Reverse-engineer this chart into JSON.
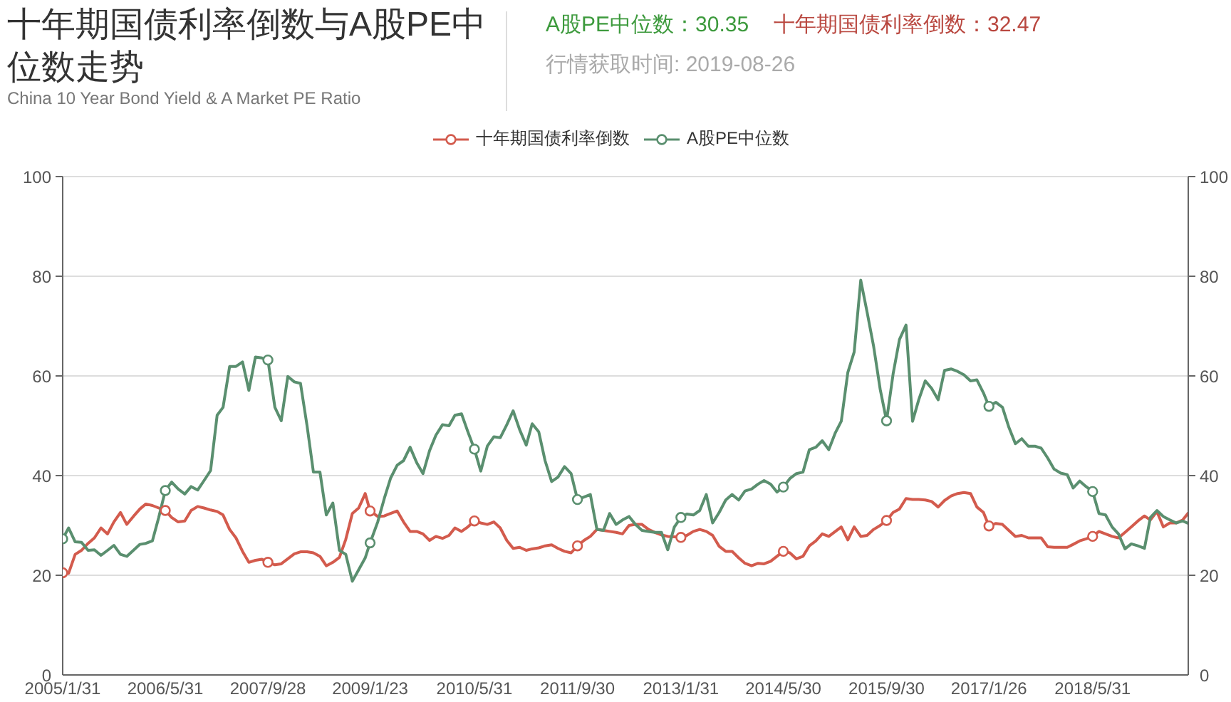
{
  "chart_data": {
    "type": "line",
    "title": "十年期国债利率倒数与A股PE中位数走势",
    "subtitle": "China 10 Year Bond Yield & A Market PE Ratio",
    "annotations": [
      "A股PE中位数：30.35",
      "十年期国债利率倒数：32.47",
      "行情获取时间: 2019-08-26"
    ],
    "x": [
      "2005-01-31",
      "2005-02-28",
      "2005-03-31",
      "2005-04-30",
      "2005-05-31",
      "2005-06-30",
      "2005-07-31",
      "2005-08-31",
      "2005-09-30",
      "2005-10-31",
      "2005-11-30",
      "2005-12-31",
      "2006-01-31",
      "2006-02-28",
      "2006-03-31",
      "2006-04-30",
      "2006-05-31",
      "2006-06-30",
      "2006-07-31",
      "2006-08-31",
      "2006-09-30",
      "2006-10-31",
      "2006-11-30",
      "2006-12-31",
      "2007-01-31",
      "2007-02-28",
      "2007-03-31",
      "2007-04-30",
      "2007-05-31",
      "2007-06-30",
      "2007-07-31",
      "2007-08-31",
      "2007-09-28",
      "2007-10-31",
      "2007-11-30",
      "2007-12-31",
      "2008-01-31",
      "2008-02-29",
      "2008-03-31",
      "2008-04-30",
      "2008-05-31",
      "2008-06-30",
      "2008-07-31",
      "2008-08-31",
      "2008-09-30",
      "2008-10-31",
      "2008-11-30",
      "2008-12-31",
      "2009-01-23",
      "2009-02-28",
      "2009-03-31",
      "2009-04-30",
      "2009-05-31",
      "2009-06-30",
      "2009-07-31",
      "2009-08-31",
      "2009-09-30",
      "2009-10-31",
      "2009-11-30",
      "2009-12-31",
      "2010-01-31",
      "2010-02-28",
      "2010-03-31",
      "2010-04-30",
      "2010-05-31",
      "2010-06-30",
      "2010-07-31",
      "2010-08-31",
      "2010-09-30",
      "2010-10-31",
      "2010-11-30",
      "2010-12-31",
      "2011-01-31",
      "2011-02-28",
      "2011-03-31",
      "2011-04-30",
      "2011-05-31",
      "2011-06-30",
      "2011-07-31",
      "2011-08-31",
      "2011-09-30",
      "2011-10-31",
      "2011-11-30",
      "2011-12-31",
      "2012-01-31",
      "2012-02-29",
      "2012-03-31",
      "2012-04-30",
      "2012-05-31",
      "2012-06-30",
      "2012-07-31",
      "2012-08-31",
      "2012-09-30",
      "2012-10-31",
      "2012-11-30",
      "2012-12-31",
      "2013-01-31",
      "2013-02-28",
      "2013-03-31",
      "2013-04-30",
      "2013-05-31",
      "2013-06-30",
      "2013-07-31",
      "2013-08-31",
      "2013-09-30",
      "2013-10-31",
      "2013-11-30",
      "2013-12-31",
      "2014-01-31",
      "2014-02-28",
      "2014-03-31",
      "2014-04-30",
      "2014-05-30",
      "2014-06-30",
      "2014-07-31",
      "2014-08-31",
      "2014-09-30",
      "2014-10-31",
      "2014-11-30",
      "2014-12-31",
      "2015-01-31",
      "2015-02-28",
      "2015-03-31",
      "2015-04-30",
      "2015-05-31",
      "2015-06-30",
      "2015-07-31",
      "2015-08-31",
      "2015-09-30",
      "2015-10-31",
      "2015-11-30",
      "2015-12-31",
      "2016-01-31",
      "2016-02-29",
      "2016-03-31",
      "2016-04-30",
      "2016-05-31",
      "2016-06-30",
      "2016-07-31",
      "2016-08-31",
      "2016-09-30",
      "2016-10-31",
      "2016-11-30",
      "2016-12-31",
      "2017-01-26",
      "2017-02-28",
      "2017-03-31",
      "2017-04-30",
      "2017-05-31",
      "2017-06-30",
      "2017-07-31",
      "2017-08-31",
      "2017-09-30",
      "2017-10-31",
      "2017-11-30",
      "2017-12-31",
      "2018-01-31",
      "2018-02-28",
      "2018-03-31",
      "2018-04-30",
      "2018-05-31",
      "2018-06-30",
      "2018-07-31",
      "2018-08-31",
      "2018-09-30",
      "2018-10-31",
      "2018-11-30",
      "2018-12-31",
      "2019-01-31",
      "2019-02-28",
      "2019-03-31",
      "2019-04-30",
      "2019-05-31",
      "2019-06-30",
      "2019-07-31",
      "2019-08-26"
    ],
    "series": [
      {
        "name": "十年期国债利率倒数",
        "color": "#d35b4d",
        "values": [
          20.5,
          20.4,
          24.2,
          25,
          26.4,
          27.5,
          29.5,
          28.3,
          30.7,
          32.6,
          30.2,
          31.8,
          33.3,
          34.3,
          34,
          33.5,
          33,
          31.6,
          30.7,
          30.9,
          33,
          33.8,
          33.5,
          33.1,
          32.8,
          32.1,
          29.2,
          27.5,
          24.8,
          22.6,
          23,
          23.2,
          22.6,
          22.1,
          22.3,
          23.3,
          24.3,
          24.7,
          24.7,
          24.5,
          23.8,
          21.9,
          22.6,
          23.6,
          27.2,
          32.4,
          33.5,
          36.4,
          32.9,
          31.8,
          31.9,
          32.4,
          32.9,
          30.7,
          28.8,
          28.8,
          28.3,
          27,
          27.8,
          27.4,
          28,
          29.5,
          28.8,
          29.7,
          30.9,
          30.5,
          30.2,
          30.7,
          29.5,
          27,
          25.4,
          25.6,
          25,
          25.3,
          25.5,
          25.9,
          26.1,
          25.4,
          24.8,
          24.5,
          25.9,
          27,
          27.8,
          29.2,
          29,
          28.8,
          28.6,
          28.3,
          30,
          30.2,
          30.2,
          29.2,
          28.6,
          28.1,
          27.8,
          27.7,
          27.6,
          28,
          28.8,
          29.2,
          28.8,
          28,
          25.8,
          24.8,
          24.8,
          23.5,
          22.4,
          21.9,
          22.4,
          22.3,
          22.8,
          23.8,
          24.8,
          24.5,
          23.3,
          23.8,
          25.9,
          26.9,
          28.3,
          27.8,
          28.8,
          29.7,
          27.1,
          29.7,
          27.8,
          28,
          29.2,
          30,
          31,
          32.6,
          33.3,
          35.4,
          35.2,
          35.2,
          35.1,
          34.8,
          33.7,
          35,
          35.9,
          36.4,
          36.6,
          36.4,
          33.7,
          32.6,
          29.9,
          30.4,
          30.2,
          29,
          27.8,
          28,
          27.5,
          27.5,
          27.5,
          25.7,
          25.6,
          25.6,
          25.6,
          26.2,
          26.9,
          27.3,
          27.8,
          28.8,
          28.3,
          27.8,
          27.5,
          28.6,
          29.7,
          30.9,
          31.9,
          31.1,
          32.8,
          29.7,
          30.5,
          30.5,
          31.1,
          32.5
        ]
      },
      {
        "name": "A股PE中位数",
        "color": "#5a8f6f",
        "axis": "y2",
        "values": [
          27.3,
          29.5,
          26.7,
          26.6,
          25,
          25.1,
          24,
          25,
          26,
          24.2,
          23.8,
          25,
          26.2,
          26.4,
          26.9,
          31.6,
          37,
          38.7,
          37.3,
          36.3,
          37.8,
          37.1,
          39,
          41,
          52.1,
          53.7,
          61.9,
          61.9,
          62.8,
          57.1,
          63.8,
          63.6,
          63.2,
          53.7,
          51,
          59.9,
          58.8,
          58.5,
          50,
          40.7,
          40.7,
          32.1,
          34.5,
          25,
          24.2,
          18.8,
          21.1,
          23.5,
          26.5,
          30.7,
          35.4,
          39.5,
          42.1,
          43,
          45.7,
          42.6,
          40.4,
          45,
          48.1,
          50.2,
          50,
          52.1,
          52.4,
          48.8,
          45.3,
          40.9,
          45.9,
          47.8,
          47.6,
          50.2,
          53,
          49.2,
          46.1,
          50.4,
          48.8,
          43,
          38.8,
          39.7,
          41.8,
          40.4,
          35.2,
          35.7,
          36.2,
          29.2,
          29,
          32.4,
          30.2,
          31.1,
          31.8,
          30.2,
          29,
          28.8,
          28.6,
          28.6,
          25.1,
          29.7,
          31.6,
          32.3,
          32.1,
          33,
          36.2,
          30.5,
          32.6,
          35.1,
          36.2,
          35.1,
          36.9,
          37.3,
          38.3,
          39,
          38.3,
          36.7,
          37.7,
          39.4,
          40.4,
          40.7,
          45.2,
          45.7,
          47,
          45.2,
          48.6,
          50.9,
          60.7,
          64.8,
          79.2,
          72.8,
          65.9,
          57.3,
          51,
          60.4,
          67.3,
          70.2,
          50.9,
          55.2,
          59,
          57.5,
          55.2,
          61.1,
          61.4,
          60.9,
          60.2,
          59,
          59.2,
          56.6,
          53.9,
          54.7,
          53.7,
          49.7,
          46.4,
          47.4,
          45.9,
          45.9,
          45.5,
          43.5,
          41.3,
          40.5,
          40.2,
          37.5,
          38.9,
          37.8,
          36.8,
          32.4,
          32.1,
          29.7,
          28.3,
          25.3,
          26.3,
          25.9,
          25.4,
          31.6,
          33,
          31.8,
          31.1,
          30.5,
          30.9,
          30.4
        ]
      },
      {
        "type": "scatter",
        "color": "#d35b4d",
        "marker": "circle",
        "x": [
          "2005-01-31",
          "2006-05-31",
          "2007-09-28",
          "2009-01-23",
          "2010-05-31",
          "2011-09-30",
          "2013-01-31",
          "2014-05-30",
          "2015-09-30",
          "2017-01-26",
          "2018-05-31"
        ],
        "values": [
          20.5,
          33,
          22.6,
          32.9,
          30.9,
          25.9,
          27.6,
          24.8,
          31,
          29.9,
          27.8
        ]
      },
      {
        "type": "scatter",
        "color": "#5a8f6f",
        "marker": "circle",
        "axis": "y2",
        "x": [
          "2005-01-31",
          "2006-05-31",
          "2007-09-28",
          "2009-01-23",
          "2010-05-31",
          "2011-09-30",
          "2013-01-31",
          "2014-05-30",
          "2015-09-30",
          "2017-01-26",
          "2018-05-31"
        ],
        "values": [
          27.3,
          37,
          63.2,
          26.5,
          45.3,
          35.2,
          31.6,
          37.7,
          51,
          53.9,
          36.8
        ]
      }
    ],
    "xlim": [
      "2005-01-31",
      "2019-08-26"
    ],
    "xticks": [
      {
        "value": "2005-01-31",
        "label": "2005/1/31"
      },
      {
        "value": "2006-05-31",
        "label": "2006/5/31"
      },
      {
        "value": "2007-09-28",
        "label": "2007/9/28"
      },
      {
        "value": "2009-01-23",
        "label": "2009/1/23"
      },
      {
        "value": "2010-05-31",
        "label": "2010/5/31"
      },
      {
        "value": "2011-09-30",
        "label": "2011/9/30"
      },
      {
        "value": "2013-01-31",
        "label": "2013/1/31"
      },
      {
        "value": "2014-05-30",
        "label": "2014/5/30"
      },
      {
        "value": "2015-09-30",
        "label": "2015/9/30"
      },
      {
        "value": "2017-01-26",
        "label": "2017/1/26"
      },
      {
        "value": "2018-05-31",
        "label": "2018/5/31"
      }
    ],
    "ylim": [
      0,
      100
    ],
    "yticks": [
      0,
      20,
      40,
      60,
      80,
      100
    ],
    "y2lim": [
      0,
      100
    ],
    "y2ticks": [
      0,
      20,
      40,
      60,
      80,
      100
    ],
    "grid": "y",
    "legend": "top",
    "line_style": "solid"
  }
}
